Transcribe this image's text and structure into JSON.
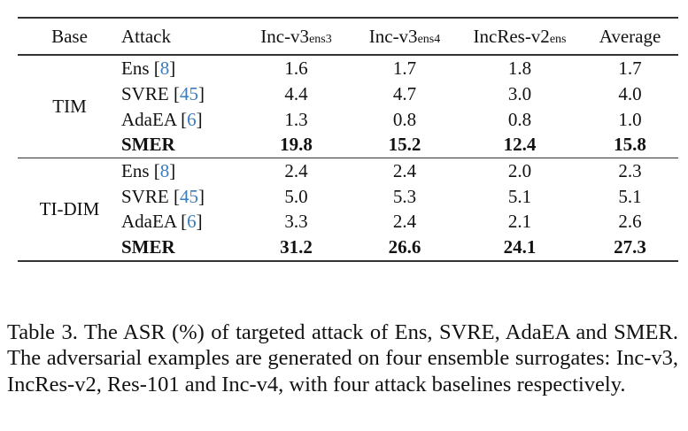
{
  "table": {
    "headers": {
      "base": "Base",
      "attack": "Attack",
      "col1_main": "Inc-v3",
      "col1_sub": "ens3",
      "col2_main": "Inc-v3",
      "col2_sub": "ens4",
      "col3_main": "IncRes-v2",
      "col3_sub": "ens",
      "avg": "Average"
    },
    "groups": [
      {
        "base": "TIM",
        "rows": [
          {
            "method": "Ens",
            "cite": "8",
            "v3ens3": "1.6",
            "v3ens4": "1.7",
            "incresv2ens": "1.8",
            "average": "1.7",
            "bold": false
          },
          {
            "method": "SVRE",
            "cite": "45",
            "v3ens3": "4.4",
            "v3ens4": "4.7",
            "incresv2ens": "3.0",
            "average": "4.0",
            "bold": false
          },
          {
            "method": "AdaEA",
            "cite": "6",
            "v3ens3": "1.3",
            "v3ens4": "0.8",
            "incresv2ens": "0.8",
            "average": "1.0",
            "bold": false
          },
          {
            "method": "SMER",
            "cite": "",
            "v3ens3": "19.8",
            "v3ens4": "15.2",
            "incresv2ens": "12.4",
            "average": "15.8",
            "bold": true
          }
        ]
      },
      {
        "base": "TI-DIM",
        "rows": [
          {
            "method": "Ens",
            "cite": "8",
            "v3ens3": "2.4",
            "v3ens4": "2.4",
            "incresv2ens": "2.0",
            "average": "2.3",
            "bold": false
          },
          {
            "method": "SVRE",
            "cite": "45",
            "v3ens3": "5.0",
            "v3ens4": "5.3",
            "incresv2ens": "5.1",
            "average": "5.1",
            "bold": false
          },
          {
            "method": "AdaEA",
            "cite": "6",
            "v3ens3": "3.3",
            "v3ens4": "2.4",
            "incresv2ens": "2.1",
            "average": "2.6",
            "bold": false
          },
          {
            "method": "SMER",
            "cite": "",
            "v3ens3": "31.2",
            "v3ens4": "26.6",
            "incresv2ens": "24.1",
            "average": "27.3",
            "bold": true
          }
        ]
      }
    ]
  },
  "caption": "Table 3.  The ASR (%) of targeted attack of Ens, SVRE, AdaEA and SMER. The adversarial examples are generated on four ensemble surrogates: Inc-v3, IncRes-v2, Res-101 and Inc-v4, with four attack baselines respectively.",
  "colors": {
    "citation": "#3a7dbf",
    "text": "#111111",
    "rules": "#333333"
  },
  "chart_data": {
    "type": "table",
    "title": "Table 3. The ASR (%) of targeted attack of Ens, SVRE, AdaEA and SMER",
    "columns": [
      "Base",
      "Attack",
      "Inc-v3ens3",
      "Inc-v3ens4",
      "IncRes-v2ens",
      "Average"
    ],
    "rows": [
      [
        "TIM",
        "Ens [8]",
        1.6,
        1.7,
        1.8,
        1.7
      ],
      [
        "TIM",
        "SVRE [45]",
        4.4,
        4.7,
        3.0,
        4.0
      ],
      [
        "TIM",
        "AdaEA [6]",
        1.3,
        0.8,
        0.8,
        1.0
      ],
      [
        "TIM",
        "SMER",
        19.8,
        15.2,
        12.4,
        15.8
      ],
      [
        "TI-DIM",
        "Ens [8]",
        2.4,
        2.4,
        2.0,
        2.3
      ],
      [
        "TI-DIM",
        "SVRE [45]",
        5.0,
        5.3,
        5.1,
        5.1
      ],
      [
        "TI-DIM",
        "AdaEA [6]",
        3.3,
        2.4,
        2.1,
        2.6
      ],
      [
        "TI-DIM",
        "SMER",
        31.2,
        26.6,
        24.1,
        27.3
      ]
    ]
  }
}
